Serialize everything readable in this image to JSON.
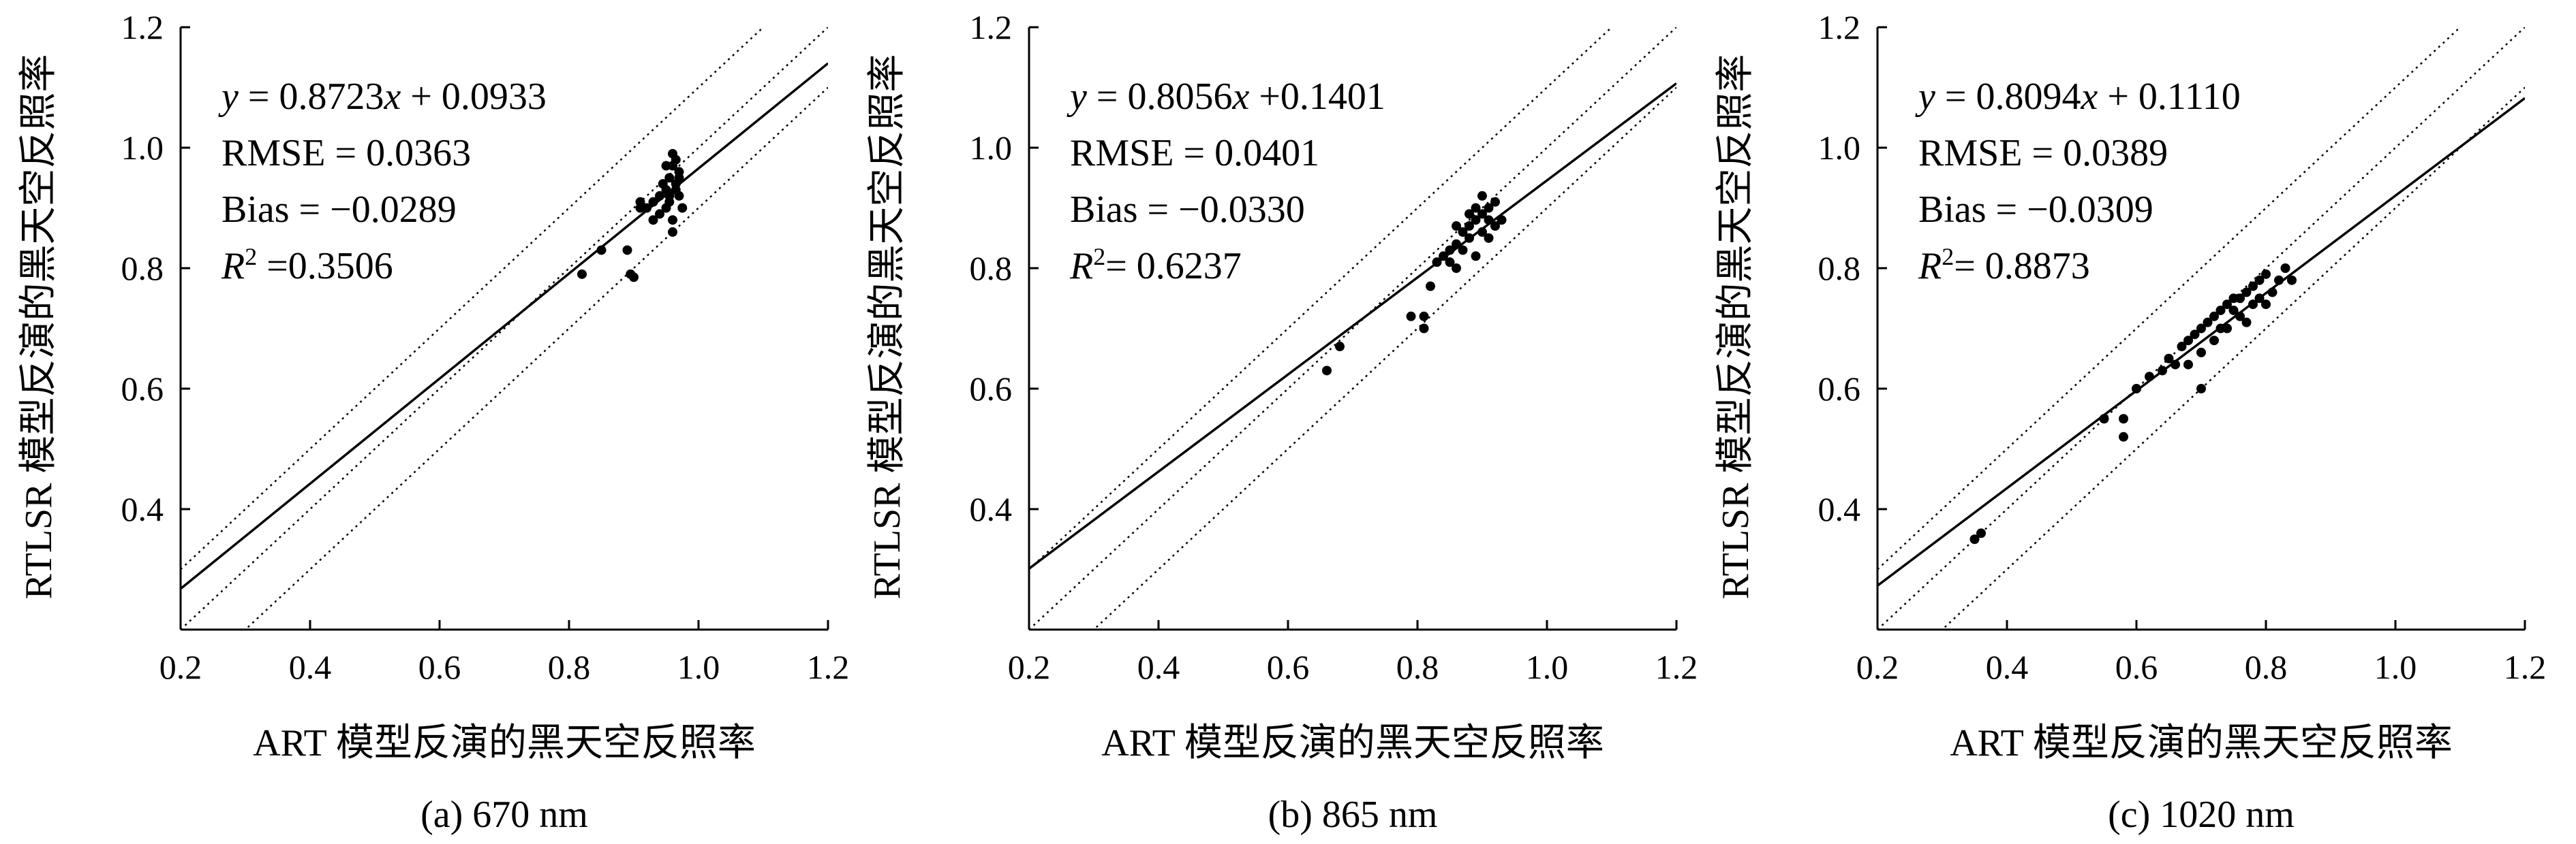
{
  "chart_data": [
    {
      "type": "scatter",
      "panel_label": "(a) 670 nm",
      "xlabel": "ART 模型反演的黑天空反照率",
      "ylabel": "RTLSR 模型反演的黑天空反照率",
      "xlim": [
        0.2,
        1.2
      ],
      "ylim": [
        0.2,
        1.2
      ],
      "xticks": [
        "0.2",
        "0.4",
        "0.6",
        "0.8",
        "1.0",
        "1.2"
      ],
      "yticks": [
        "0.4",
        "0.6",
        "0.8",
        "1.0",
        "1.2"
      ],
      "fit": {
        "slope": 0.8723,
        "intercept": 0.0933
      },
      "envelope_offset": 0.1,
      "annotations": {
        "equation": {
          "y": "y",
          "eq_prefix": " = 0.8723",
          "x": "x",
          "eq_suffix": " + 0.0933"
        },
        "rmse": "RMSE = 0.0363",
        "bias": "Bias = −0.0289",
        "r2": {
          "r": "R",
          "sup": "2",
          "value": " =0.3506"
        }
      },
      "points": [
        [
          0.82,
          0.79
        ],
        [
          0.85,
          0.83
        ],
        [
          0.89,
          0.83
        ],
        [
          0.895,
          0.79
        ],
        [
          0.9,
          0.785
        ],
        [
          0.91,
          0.9
        ],
        [
          0.92,
          0.9
        ],
        [
          0.93,
          0.91
        ],
        [
          0.94,
          0.92
        ],
        [
          0.95,
          0.93
        ],
        [
          0.955,
          0.95
        ],
        [
          0.96,
          0.97
        ],
        [
          0.96,
          0.99
        ],
        [
          0.965,
          0.98
        ],
        [
          0.95,
          0.9
        ],
        [
          0.96,
          0.88
        ],
        [
          0.97,
          0.92
        ],
        [
          0.97,
          0.95
        ],
        [
          0.945,
          0.94
        ],
        [
          0.955,
          0.91
        ],
        [
          0.965,
          0.93
        ],
        [
          0.975,
          0.9
        ],
        [
          0.96,
          0.86
        ],
        [
          0.94,
          0.89
        ],
        [
          0.97,
          0.96
        ],
        [
          0.95,
          0.97
        ],
        [
          0.93,
          0.88
        ],
        [
          0.91,
          0.91
        ],
        [
          0.965,
          0.94
        ],
        [
          0.955,
          0.92
        ]
      ]
    },
    {
      "type": "scatter",
      "panel_label": "(b) 865 nm",
      "xlabel": "ART 模型反演的黑天空反照率",
      "ylabel": "RTLSR 模型反演的黑天空反照率",
      "xlim": [
        0.2,
        1.2
      ],
      "ylim": [
        0.2,
        1.2
      ],
      "xticks": [
        "0.2",
        "0.4",
        "0.6",
        "0.8",
        "1.0",
        "1.2"
      ],
      "yticks": [
        "0.4",
        "0.6",
        "0.8",
        "1.0",
        "1.2"
      ],
      "fit": {
        "slope": 0.8056,
        "intercept": 0.1401
      },
      "envelope_offset": 0.1,
      "annotations": {
        "equation": {
          "y": "y",
          "eq_prefix": " = 0.8056",
          "x": "x",
          "eq_suffix": " +0.1401"
        },
        "rmse": "RMSE = 0.0401",
        "bias": "Bias = −0.0330",
        "r2": {
          "r": "R",
          "sup": "2",
          "value": "= 0.6237"
        }
      },
      "points": [
        [
          0.66,
          0.63
        ],
        [
          0.68,
          0.67
        ],
        [
          0.79,
          0.72
        ],
        [
          0.81,
          0.72
        ],
        [
          0.81,
          0.7
        ],
        [
          0.82,
          0.77
        ],
        [
          0.83,
          0.81
        ],
        [
          0.84,
          0.82
        ],
        [
          0.85,
          0.83
        ],
        [
          0.86,
          0.84
        ],
        [
          0.87,
          0.86
        ],
        [
          0.88,
          0.87
        ],
        [
          0.89,
          0.88
        ],
        [
          0.9,
          0.89
        ],
        [
          0.91,
          0.9
        ],
        [
          0.92,
          0.91
        ],
        [
          0.9,
          0.92
        ],
        [
          0.88,
          0.89
        ],
        [
          0.86,
          0.8
        ],
        [
          0.89,
          0.82
        ],
        [
          0.91,
          0.85
        ],
        [
          0.93,
          0.88
        ],
        [
          0.87,
          0.83
        ],
        [
          0.85,
          0.81
        ],
        [
          0.9,
          0.86
        ],
        [
          0.92,
          0.87
        ],
        [
          0.88,
          0.85
        ],
        [
          0.86,
          0.87
        ],
        [
          0.91,
          0.88
        ],
        [
          0.89,
          0.9
        ]
      ]
    },
    {
      "type": "scatter",
      "panel_label": "(c) 1020 nm",
      "xlabel": "ART 模型反演的黑天空反照率",
      "ylabel": "RTLSR 模型反演的黑天空反照率",
      "xlim": [
        0.2,
        1.2
      ],
      "ylim": [
        0.2,
        1.2
      ],
      "xticks": [
        "0.2",
        "0.4",
        "0.6",
        "0.8",
        "1.0",
        "1.2"
      ],
      "yticks": [
        "0.4",
        "0.6",
        "0.8",
        "1.0",
        "1.2"
      ],
      "fit": {
        "slope": 0.8094,
        "intercept": 0.111
      },
      "envelope_offset": 0.1,
      "annotations": {
        "equation": {
          "y": "y",
          "eq_prefix": " = 0.8094",
          "x": "x",
          "eq_suffix": " + 0.1110"
        },
        "rmse": "RMSE = 0.0389",
        "bias": "Bias = −0.0309",
        "r2": {
          "r": "R",
          "sup": "2",
          "value": "= 0.8873"
        }
      },
      "points": [
        [
          0.35,
          0.35
        ],
        [
          0.36,
          0.36
        ],
        [
          0.55,
          0.55
        ],
        [
          0.58,
          0.55
        ],
        [
          0.58,
          0.52
        ],
        [
          0.6,
          0.6
        ],
        [
          0.62,
          0.62
        ],
        [
          0.64,
          0.63
        ],
        [
          0.65,
          0.65
        ],
        [
          0.66,
          0.64
        ],
        [
          0.67,
          0.67
        ],
        [
          0.68,
          0.68
        ],
        [
          0.69,
          0.69
        ],
        [
          0.7,
          0.7
        ],
        [
          0.71,
          0.71
        ],
        [
          0.72,
          0.72
        ],
        [
          0.73,
          0.73
        ],
        [
          0.74,
          0.74
        ],
        [
          0.75,
          0.75
        ],
        [
          0.76,
          0.75
        ],
        [
          0.77,
          0.76
        ],
        [
          0.78,
          0.77
        ],
        [
          0.79,
          0.78
        ],
        [
          0.8,
          0.79
        ],
        [
          0.81,
          0.76
        ],
        [
          0.82,
          0.78
        ],
        [
          0.83,
          0.8
        ],
        [
          0.84,
          0.78
        ],
        [
          0.7,
          0.66
        ],
        [
          0.72,
          0.68
        ],
        [
          0.74,
          0.7
        ],
        [
          0.76,
          0.72
        ],
        [
          0.78,
          0.74
        ],
        [
          0.8,
          0.74
        ],
        [
          0.68,
          0.64
        ],
        [
          0.7,
          0.6
        ],
        [
          0.73,
          0.7
        ],
        [
          0.75,
          0.73
        ],
        [
          0.77,
          0.71
        ],
        [
          0.79,
          0.75
        ]
      ]
    }
  ]
}
